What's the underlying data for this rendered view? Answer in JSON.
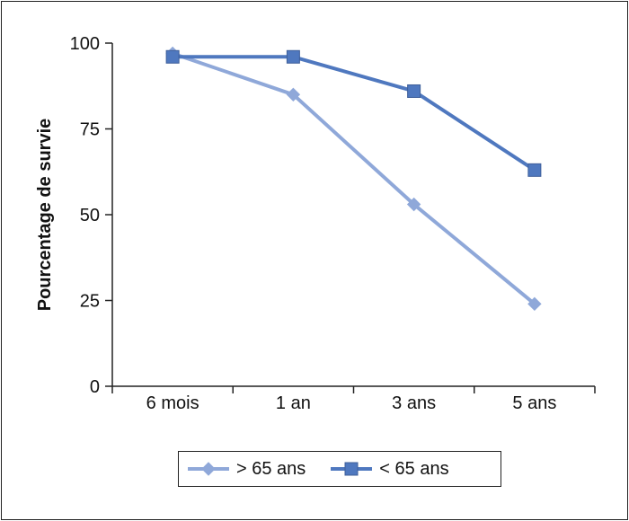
{
  "chart_data": {
    "type": "line",
    "categories": [
      "6 mois",
      "1 an",
      "3 ans",
      "5 ans"
    ],
    "series": [
      {
        "name": "> 65 ans",
        "values": [
          97,
          85,
          53,
          24
        ],
        "color": "#8fa8d9",
        "marker": "diamond"
      },
      {
        "name": "< 65 ans",
        "values": [
          96,
          96,
          86,
          63
        ],
        "color": "#4f78bf",
        "marker": "square"
      }
    ],
    "title": "",
    "xlabel": "",
    "ylabel": "Pourcentage de survie",
    "ylim": [
      0,
      100
    ],
    "yticks": [
      0,
      25,
      50,
      75,
      100
    ],
    "grid": false,
    "legend_position": "bottom"
  }
}
